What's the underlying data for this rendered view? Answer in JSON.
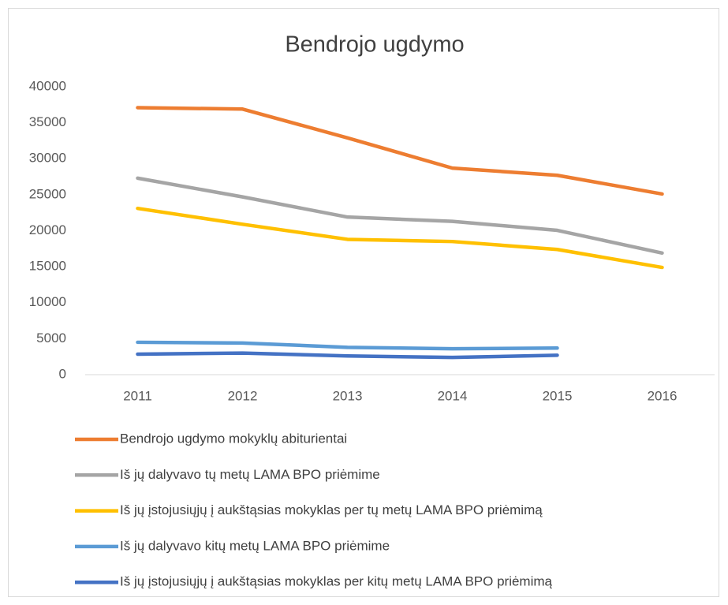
{
  "chart_data": {
    "type": "line",
    "title": "Bendrojo ugdymo",
    "categories": [
      "2011",
      "2012",
      "2013",
      "2014",
      "2015",
      "2016"
    ],
    "series": [
      {
        "name": "Bendrojo ugdymo mokyklų abiturientai",
        "color": "#ed7d31",
        "values": [
          37100,
          36900,
          32900,
          28700,
          27700,
          25100
        ]
      },
      {
        "name": "Iš jų dalyvavo tų metų LAMA BPO priėmime",
        "color": "#a5a5a5",
        "values": [
          27300,
          24700,
          21900,
          21300,
          20050,
          16900
        ]
      },
      {
        "name": "Iš jų įstojusiųjų į aukštąsias mokyklas per tų metų LAMA BPO priėmimą",
        "color": "#ffc000",
        "values": [
          23100,
          20900,
          18800,
          18500,
          17400,
          14900
        ]
      },
      {
        "name": "Iš jų dalyvavo kitų metų LAMA BPO priėmime",
        "color": "#5b9bd5",
        "values": [
          4500,
          4400,
          3800,
          3600,
          3700,
          null
        ]
      },
      {
        "name": "Iš jų įstojusiųjų į aukštąsias mokyklas per kitų metų LAMA BPO priėmimą",
        "color": "#4472c4",
        "values": [
          2850,
          3000,
          2600,
          2400,
          2700,
          null
        ]
      }
    ],
    "ylim": [
      0,
      40000
    ],
    "yticks": [
      0,
      5000,
      10000,
      15000,
      20000,
      25000,
      30000,
      35000,
      40000
    ],
    "grid": false,
    "legend": "bottom"
  }
}
